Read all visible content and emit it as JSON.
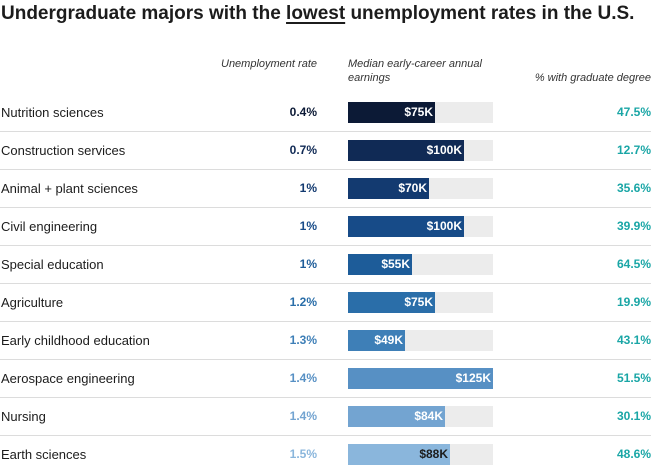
{
  "title_prefix": "Undergraduate majors with the ",
  "title_emph": "lowest",
  "title_suffix": " unemployment rates in the U.S.",
  "headers": {
    "rate": "Unemployment rate",
    "earnings": "Median early-career annual earnings",
    "grad": "% with graduate degree"
  },
  "colors": {
    "track": "#ececec",
    "grad_text": "#1aa6a6",
    "row_colors": [
      "#0c1a36",
      "#102a55",
      "#133a70",
      "#174b88",
      "#1d5c99",
      "#2a6ea9",
      "#3e7fb7",
      "#5790c4",
      "#73a4d1",
      "#8ab6dc"
    ],
    "rate_colors": [
      "#0c1a36",
      "#102a55",
      "#133a70",
      "#174b88",
      "#1d5c99",
      "#2a6ea9",
      "#3e7fb7",
      "#5790c4",
      "#73a4d1",
      "#8ab6dc"
    ]
  },
  "chart_data": {
    "type": "table",
    "columns": [
      "Unemployment rate",
      "Median early-career annual earnings",
      "% with graduate degree"
    ],
    "earnings_max": 125,
    "rows": [
      {
        "major": "Nutrition sciences",
        "rate": "0.4%",
        "earnings": 75,
        "earnings_label": "$75K",
        "grad": "47.5%"
      },
      {
        "major": "Construction services",
        "rate": "0.7%",
        "earnings": 100,
        "earnings_label": "$100K",
        "grad": "12.7%"
      },
      {
        "major": "Animal + plant sciences",
        "rate": "1%",
        "earnings": 70,
        "earnings_label": "$70K",
        "grad": "35.6%"
      },
      {
        "major": "Civil engineering",
        "rate": "1%",
        "earnings": 100,
        "earnings_label": "$100K",
        "grad": "39.9%"
      },
      {
        "major": "Special education",
        "rate": "1%",
        "earnings": 55,
        "earnings_label": "$55K",
        "grad": "64.5%"
      },
      {
        "major": "Agriculture",
        "rate": "1.2%",
        "earnings": 75,
        "earnings_label": "$75K",
        "grad": "19.9%"
      },
      {
        "major": "Early childhood education",
        "rate": "1.3%",
        "earnings": 49,
        "earnings_label": "$49K",
        "grad": "43.1%"
      },
      {
        "major": "Aerospace engineering",
        "rate": "1.4%",
        "earnings": 125,
        "earnings_label": "$125K",
        "grad": "51.5%"
      },
      {
        "major": "Nursing",
        "rate": "1.4%",
        "earnings": 84,
        "earnings_label": "$84K",
        "grad": "30.1%"
      },
      {
        "major": "Earth sciences",
        "rate": "1.5%",
        "earnings": 88,
        "earnings_label": "$88K",
        "grad": "48.6%"
      }
    ]
  }
}
